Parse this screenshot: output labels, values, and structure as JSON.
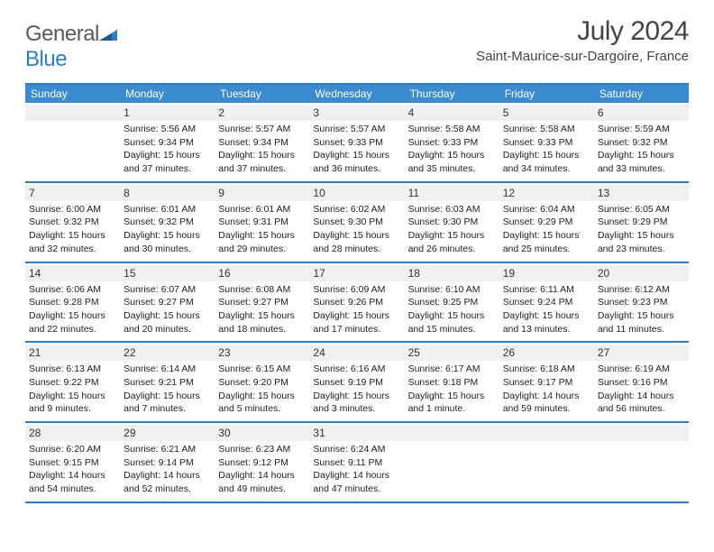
{
  "brand": {
    "part1": "General",
    "part2": "Blue"
  },
  "title": "July 2024",
  "location": "Saint-Maurice-sur-Dargoire, France",
  "colors": {
    "header_bg": "#3a8bd0",
    "border": "#2b7fc4",
    "daynum_bg": "#eef0f1",
    "text": "#222222"
  },
  "weekdays": [
    "Sunday",
    "Monday",
    "Tuesday",
    "Wednesday",
    "Thursday",
    "Friday",
    "Saturday"
  ],
  "weeks": [
    [
      {
        "empty": true
      },
      {
        "n": "1",
        "sr": "5:56 AM",
        "ss": "9:34 PM",
        "dl": "15 hours and 37 minutes."
      },
      {
        "n": "2",
        "sr": "5:57 AM",
        "ss": "9:34 PM",
        "dl": "15 hours and 37 minutes."
      },
      {
        "n": "3",
        "sr": "5:57 AM",
        "ss": "9:33 PM",
        "dl": "15 hours and 36 minutes."
      },
      {
        "n": "4",
        "sr": "5:58 AM",
        "ss": "9:33 PM",
        "dl": "15 hours and 35 minutes."
      },
      {
        "n": "5",
        "sr": "5:58 AM",
        "ss": "9:33 PM",
        "dl": "15 hours and 34 minutes."
      },
      {
        "n": "6",
        "sr": "5:59 AM",
        "ss": "9:32 PM",
        "dl": "15 hours and 33 minutes."
      }
    ],
    [
      {
        "n": "7",
        "sr": "6:00 AM",
        "ss": "9:32 PM",
        "dl": "15 hours and 32 minutes."
      },
      {
        "n": "8",
        "sr": "6:01 AM",
        "ss": "9:32 PM",
        "dl": "15 hours and 30 minutes."
      },
      {
        "n": "9",
        "sr": "6:01 AM",
        "ss": "9:31 PM",
        "dl": "15 hours and 29 minutes."
      },
      {
        "n": "10",
        "sr": "6:02 AM",
        "ss": "9:30 PM",
        "dl": "15 hours and 28 minutes."
      },
      {
        "n": "11",
        "sr": "6:03 AM",
        "ss": "9:30 PM",
        "dl": "15 hours and 26 minutes."
      },
      {
        "n": "12",
        "sr": "6:04 AM",
        "ss": "9:29 PM",
        "dl": "15 hours and 25 minutes."
      },
      {
        "n": "13",
        "sr": "6:05 AM",
        "ss": "9:29 PM",
        "dl": "15 hours and 23 minutes."
      }
    ],
    [
      {
        "n": "14",
        "sr": "6:06 AM",
        "ss": "9:28 PM",
        "dl": "15 hours and 22 minutes."
      },
      {
        "n": "15",
        "sr": "6:07 AM",
        "ss": "9:27 PM",
        "dl": "15 hours and 20 minutes."
      },
      {
        "n": "16",
        "sr": "6:08 AM",
        "ss": "9:27 PM",
        "dl": "15 hours and 18 minutes."
      },
      {
        "n": "17",
        "sr": "6:09 AM",
        "ss": "9:26 PM",
        "dl": "15 hours and 17 minutes."
      },
      {
        "n": "18",
        "sr": "6:10 AM",
        "ss": "9:25 PM",
        "dl": "15 hours and 15 minutes."
      },
      {
        "n": "19",
        "sr": "6:11 AM",
        "ss": "9:24 PM",
        "dl": "15 hours and 13 minutes."
      },
      {
        "n": "20",
        "sr": "6:12 AM",
        "ss": "9:23 PM",
        "dl": "15 hours and 11 minutes."
      }
    ],
    [
      {
        "n": "21",
        "sr": "6:13 AM",
        "ss": "9:22 PM",
        "dl": "15 hours and 9 minutes."
      },
      {
        "n": "22",
        "sr": "6:14 AM",
        "ss": "9:21 PM",
        "dl": "15 hours and 7 minutes."
      },
      {
        "n": "23",
        "sr": "6:15 AM",
        "ss": "9:20 PM",
        "dl": "15 hours and 5 minutes."
      },
      {
        "n": "24",
        "sr": "6:16 AM",
        "ss": "9:19 PM",
        "dl": "15 hours and 3 minutes."
      },
      {
        "n": "25",
        "sr": "6:17 AM",
        "ss": "9:18 PM",
        "dl": "15 hours and 1 minute."
      },
      {
        "n": "26",
        "sr": "6:18 AM",
        "ss": "9:17 PM",
        "dl": "14 hours and 59 minutes."
      },
      {
        "n": "27",
        "sr": "6:19 AM",
        "ss": "9:16 PM",
        "dl": "14 hours and 56 minutes."
      }
    ],
    [
      {
        "n": "28",
        "sr": "6:20 AM",
        "ss": "9:15 PM",
        "dl": "14 hours and 54 minutes."
      },
      {
        "n": "29",
        "sr": "6:21 AM",
        "ss": "9:14 PM",
        "dl": "14 hours and 52 minutes."
      },
      {
        "n": "30",
        "sr": "6:23 AM",
        "ss": "9:12 PM",
        "dl": "14 hours and 49 minutes."
      },
      {
        "n": "31",
        "sr": "6:24 AM",
        "ss": "9:11 PM",
        "dl": "14 hours and 47 minutes."
      },
      {
        "empty": true
      },
      {
        "empty": true
      },
      {
        "empty": true
      }
    ]
  ],
  "labels": {
    "sunrise": "Sunrise: ",
    "sunset": "Sunset: ",
    "daylight": "Daylight: "
  }
}
